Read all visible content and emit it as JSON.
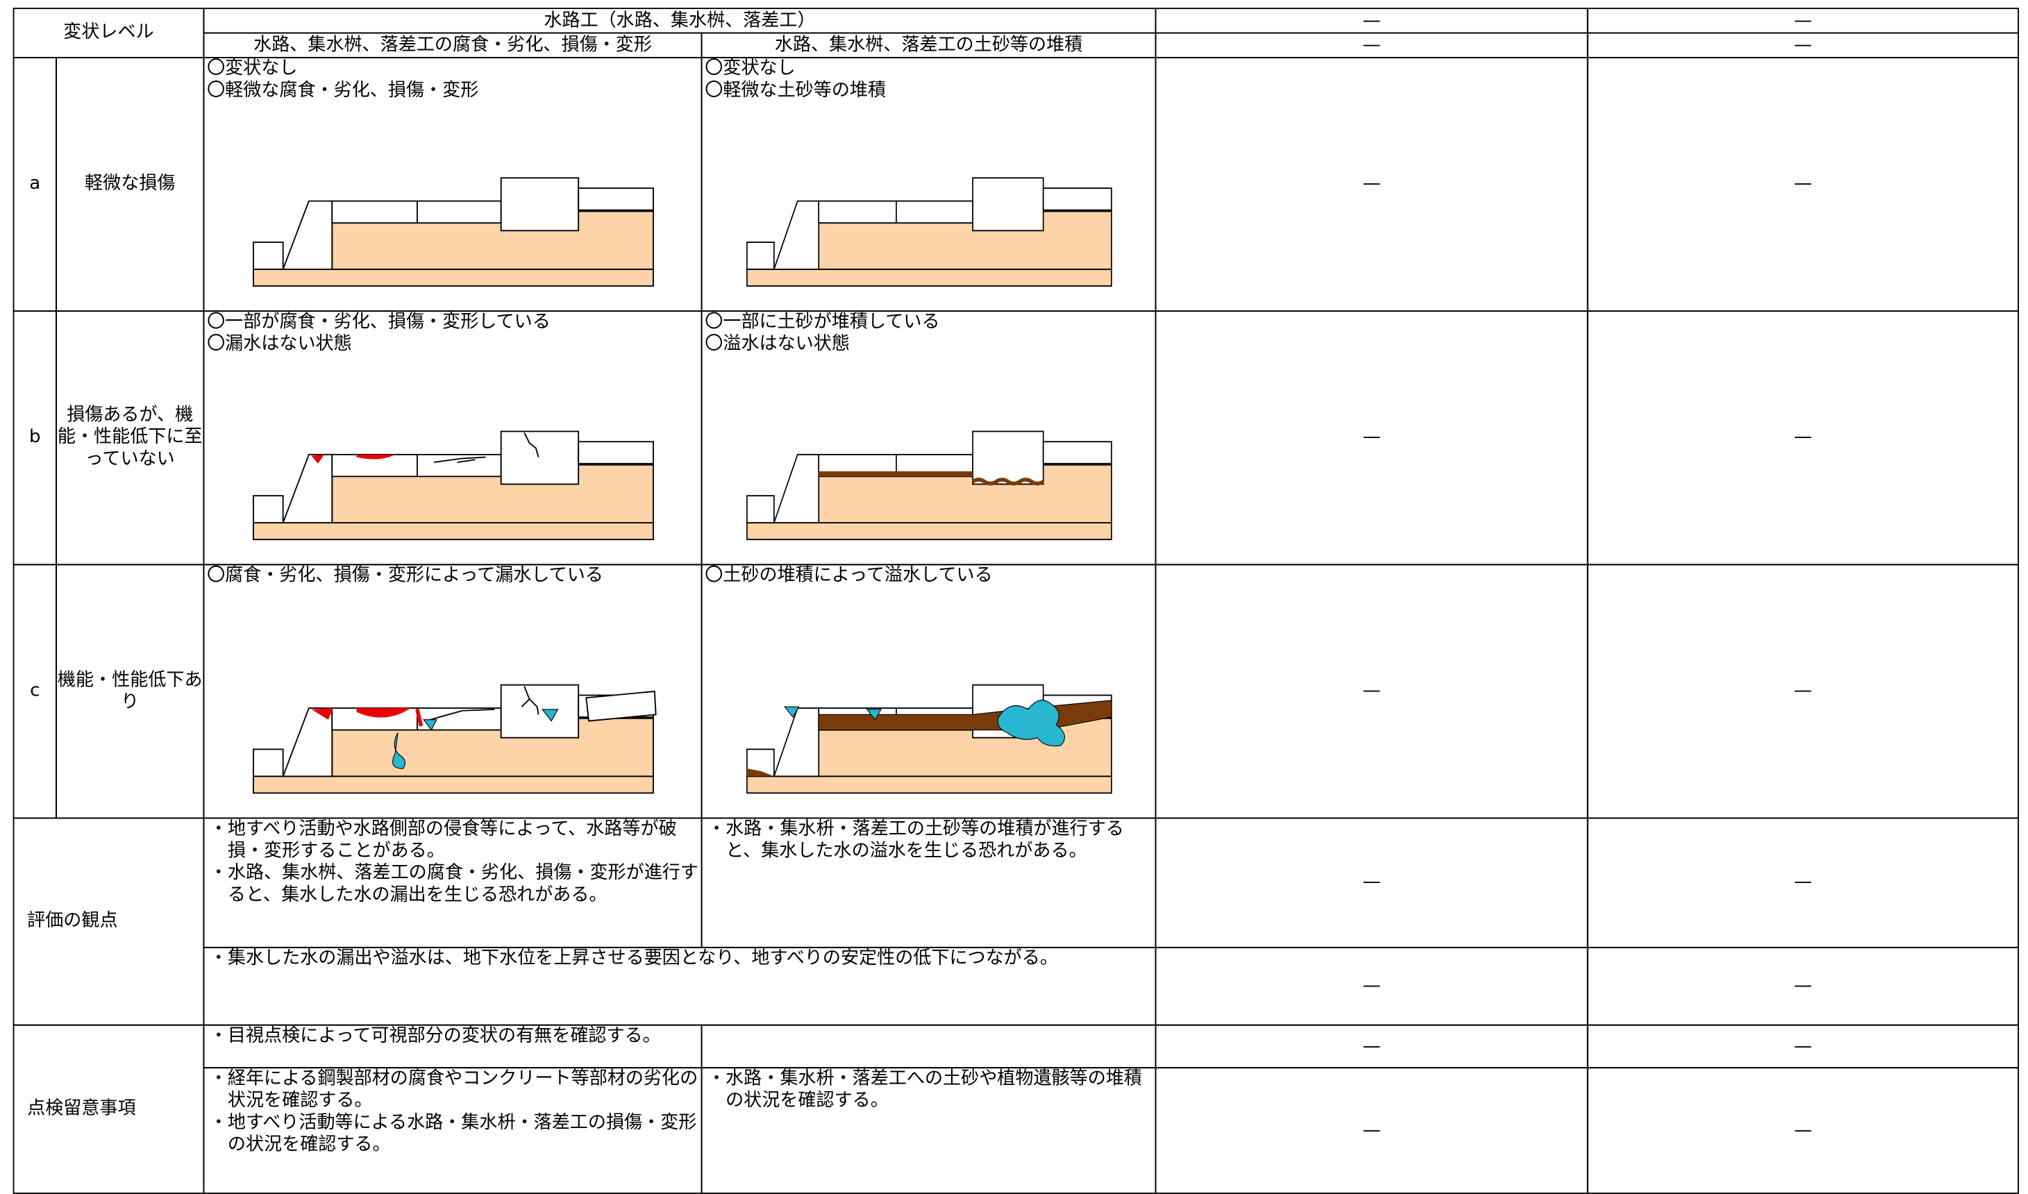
{
  "table": {
    "header": {
      "level": "変状レベル",
      "group": "水路工（水路、集水桝、落差工）",
      "sub": [
        "水路、集水桝、落差工の腐食・劣化、損傷・変形",
        "水路、集水桝、落差工の土砂等の堆積"
      ],
      "extra": [
        [
          "—",
          "—"
        ],
        [
          "—",
          "—"
        ]
      ]
    },
    "levels": [
      {
        "code": "a",
        "label": "軽微な損傷",
        "desc": [
          [
            "〇変状なし",
            "〇軽微な腐食・劣化、損傷・変形"
          ],
          [
            "〇変状なし",
            "〇軽微な土砂等の堆積"
          ]
        ],
        "extra": [
          "—",
          "—"
        ]
      },
      {
        "code": "b",
        "label": "損傷あるが、機能・性能低下に至っていない",
        "desc": [
          [
            "〇一部が腐食・劣化、損傷・変形している",
            "〇漏水はない状態"
          ],
          [
            "〇一部に土砂が堆積している",
            "〇溢水はない状態"
          ]
        ],
        "extra": [
          "—",
          "—"
        ]
      },
      {
        "code": "c",
        "label": "機能・性能低下あり",
        "desc": [
          [
            "〇腐食・劣化、損傷・変形によって漏水している"
          ],
          [
            "〇土砂の堆積によって溢水している"
          ]
        ],
        "extra": [
          "—",
          "—"
        ]
      }
    ],
    "evaluation": {
      "label": "評価の観点",
      "row1": {
        "cells": [
          [
            "・地すべり活動や水路側部の侵食等によって、水路等が破損・変形することがある。",
            "・水路、集水桝、落差工の腐食・劣化、損傷・変形が進行すると、集水した水の漏出を生じる恐れがある。"
          ],
          [
            "・水路・集水枡・落差工の土砂等の堆積が進行すると、集水した水の溢水を生じる恐れがある。"
          ]
        ],
        "extra": [
          "—",
          "—"
        ]
      },
      "row2": {
        "cells": [
          [
            "・集水した水の漏出や溢水は、地下水位を上昇させる要因となり、地すべりの安定性の低下につながる。"
          ]
        ],
        "extra": [
          "—",
          "—"
        ]
      }
    },
    "inspection": {
      "label": "点検留意事項",
      "row1": {
        "cells": [
          [
            "・目視点検によって可視部分の変状の有無を確認する。"
          ]
        ],
        "extra": [
          "—",
          "—"
        ]
      },
      "row2": {
        "cells": [
          [
            "・経年による鋼製部材の腐食やコンクリート等部材の劣化の状況を確認する。",
            "・地すべり活動等による水路・集水枡・落差工の損傷・変形の状況を確認する。"
          ],
          [
            "・水路・集水枡・落差工への土砂や植物遺骸等の堆積の状況を確認する。"
          ]
        ],
        "extra": [
          "—",
          "—"
        ]
      }
    }
  }
}
